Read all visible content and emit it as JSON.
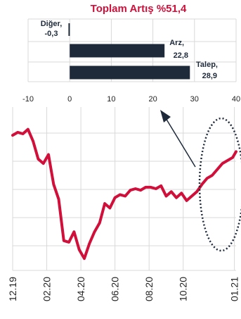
{
  "colors": {
    "bar": "#1e2a3a",
    "line": "#d0103a",
    "title": "#d0103a",
    "grid": "#d9d9d9",
    "annotation": "#1e2a3a"
  },
  "chart_data": [
    {
      "type": "bar",
      "orientation": "horizontal",
      "title": "Toplam Artış %51,4",
      "categories": [
        "Diğer,",
        "Arz,",
        "Talep,"
      ],
      "value_labels": [
        "-0,3",
        "22,8",
        "28,9"
      ],
      "values": [
        -0.3,
        22.8,
        28.9
      ],
      "xlim": [
        -10,
        40
      ],
      "xticks": [
        "-10",
        "0",
        "10",
        "20",
        "30",
        "40"
      ],
      "grid": true
    },
    {
      "type": "line",
      "xticks": [
        "12.19",
        "02.20",
        "04.20",
        "06.20",
        "08.20",
        "10.20",
        "01.21"
      ],
      "x_period_positions": [
        0,
        2,
        4,
        6,
        8,
        10,
        13
      ],
      "series": [
        {
          "x": [
            0,
            0.3,
            0.6,
            0.9,
            1.2,
            1.5,
            1.8,
            2.1,
            2.4,
            2.7,
            3.0,
            3.3,
            3.6,
            3.9,
            4.2,
            4.5,
            4.8,
            5.1,
            5.4,
            5.7,
            6.0,
            6.3,
            6.6,
            6.9,
            7.2,
            7.5,
            7.8,
            8.1,
            8.4,
            8.7,
            9.0,
            9.3,
            9.6,
            9.9,
            10.2,
            10.5,
            10.8,
            11.1,
            11.4,
            11.7,
            12.0,
            12.3,
            12.6,
            12.9,
            13.1
          ],
          "values": [
            91,
            93,
            92,
            95,
            87,
            75,
            72,
            78,
            58,
            48,
            20,
            19,
            26,
            14,
            8,
            18,
            26,
            32,
            45,
            42,
            49,
            51,
            50,
            54,
            55,
            54,
            56,
            56,
            55,
            57,
            50,
            53,
            49,
            52,
            47,
            50,
            53,
            58,
            62,
            64,
            68,
            72,
            74,
            76,
            80
          ]
        }
      ],
      "ylim": [
        0,
        110
      ],
      "grid": true
    }
  ]
}
